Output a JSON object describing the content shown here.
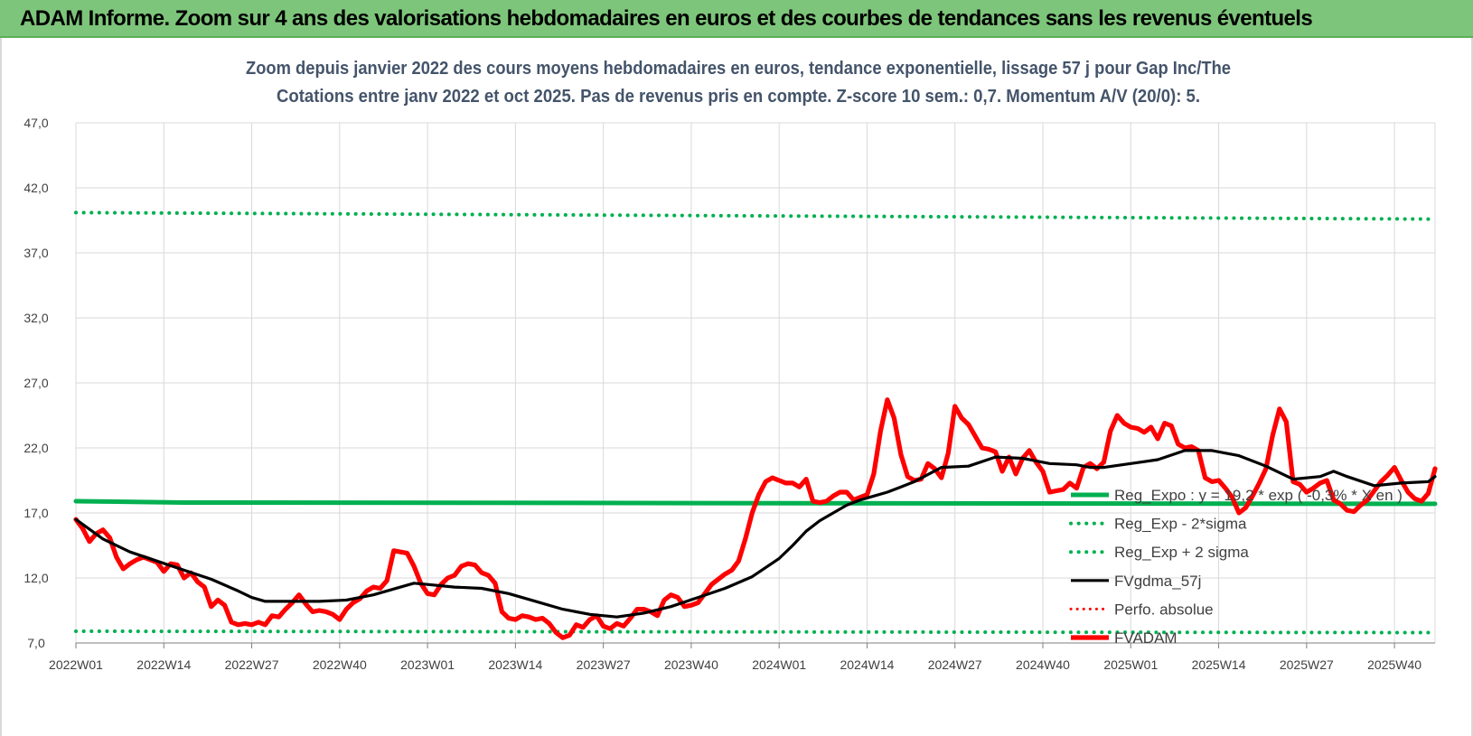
{
  "header": {
    "banner": "ADAM Informe. Zoom sur 4 ans des valorisations hebdomadaires en euros et des courbes de tendances sans les revenus éventuels"
  },
  "colors": {
    "banner_bg": "#7dc57a",
    "reg_expo": "#00b050",
    "sigma": "#00b050",
    "fvgdma": "#000000",
    "perfo": "#ff0000",
    "fvadam": "#ff0000"
  },
  "chart_data": {
    "type": "line",
    "title": "Zoom depuis janvier 2022 des cours moyens hebdomadaires en euros, tendance exponentielle, lissage 57 j pour Gap Inc/The",
    "subtitle": "Cotations entre janv 2022 et oct 2025. Pas de revenus pris en compte. Z-score 10 sem.: 0,7. Momentum A/V (20/0): 5.",
    "xlabel": "",
    "ylabel": "",
    "ylim": [
      7.0,
      47.0
    ],
    "y_ticks": [
      "7,0",
      "12,0",
      "17,0",
      "22,0",
      "27,0",
      "32,0",
      "37,0",
      "42,0",
      "47,0"
    ],
    "x_ticks": [
      "2022W01",
      "2022W14",
      "2022W27",
      "2022W40",
      "2023W01",
      "2023W14",
      "2023W27",
      "2023W40",
      "2024W01",
      "2024W14",
      "2024W27",
      "2024W40",
      "2025W01",
      "2025W14",
      "2025W27",
      "2025W40"
    ],
    "x_range_weeks": [
      0,
      201
    ],
    "legend": [
      "Reg_Expo : y = 19,2 * exp ( -0,3% * X en )",
      "Reg_Exp - 2*sigma",
      "Reg_Exp + 2 sigma",
      "FVgdma_57j",
      "Perfo. absolue",
      "FVADAM"
    ],
    "legend_position": "right",
    "series": [
      {
        "name": "Reg_Expo",
        "style": "solid-thick",
        "x": [
          0,
          16,
          201
        ],
        "values": [
          17.9,
          17.8,
          17.7
        ]
      },
      {
        "name": "Reg_Exp - 2*sigma",
        "style": "dotted",
        "x": [
          0,
          201
        ],
        "values": [
          7.9,
          7.8
        ]
      },
      {
        "name": "Reg_Exp + 2 sigma",
        "style": "dotted",
        "x": [
          0,
          201
        ],
        "values": [
          40.1,
          39.6
        ]
      },
      {
        "name": "FVgdma_57j",
        "style": "solid",
        "x": [
          0,
          4,
          8,
          12,
          16,
          20,
          24,
          26,
          28,
          32,
          36,
          40,
          44,
          48,
          50,
          52,
          56,
          60,
          64,
          68,
          72,
          76,
          80,
          84,
          88,
          92,
          96,
          100,
          104,
          106,
          108,
          110,
          112,
          114,
          116,
          118,
          120,
          122,
          124,
          128,
          132,
          136,
          140,
          144,
          148,
          150,
          152,
          156,
          160,
          164,
          168,
          172,
          176,
          180,
          184,
          186,
          188,
          192,
          196,
          200,
          201
        ],
        "values": [
          16.5,
          15.0,
          14.0,
          13.3,
          12.6,
          11.9,
          11.0,
          10.5,
          10.2,
          10.2,
          10.2,
          10.3,
          10.7,
          11.3,
          11.6,
          11.5,
          11.3,
          11.2,
          10.8,
          10.2,
          9.6,
          9.2,
          9.0,
          9.3,
          9.8,
          10.5,
          11.2,
          12.1,
          13.5,
          14.5,
          15.6,
          16.4,
          17.0,
          17.6,
          18.0,
          18.3,
          18.6,
          19.0,
          19.4,
          20.5,
          20.6,
          21.3,
          21.2,
          20.8,
          20.7,
          20.5,
          20.5,
          20.8,
          21.1,
          21.8,
          21.8,
          21.4,
          20.6,
          19.6,
          19.8,
          20.2,
          19.8,
          19.1,
          19.3,
          19.4,
          19.8
        ]
      },
      {
        "name": "FVADAM",
        "style": "solid-thick",
        "x": [
          0,
          1,
          2,
          3,
          4,
          5,
          6,
          7,
          8,
          9,
          10,
          11,
          12,
          13,
          14,
          15,
          16,
          17,
          18,
          19,
          20,
          21,
          22,
          23,
          24,
          25,
          26,
          27,
          28,
          29,
          30,
          31,
          32,
          33,
          34,
          35,
          36,
          37,
          38,
          39,
          40,
          41,
          42,
          43,
          44,
          45,
          46,
          47,
          48,
          49,
          50,
          51,
          52,
          53,
          54,
          55,
          56,
          57,
          58,
          59,
          60,
          61,
          62,
          63,
          64,
          65,
          66,
          67,
          68,
          69,
          70,
          71,
          72,
          73,
          74,
          75,
          76,
          77,
          78,
          79,
          80,
          81,
          82,
          83,
          84,
          85,
          86,
          87,
          88,
          89,
          90,
          91,
          92,
          93,
          94,
          95,
          96,
          97,
          98,
          99,
          100,
          101,
          102,
          103,
          104,
          105,
          106,
          107,
          108,
          109,
          110,
          111,
          112,
          113,
          114,
          115,
          116,
          117,
          118,
          119,
          120,
          121,
          122,
          123,
          124,
          125,
          126,
          127,
          128,
          129,
          130,
          131,
          132,
          133,
          134,
          135,
          136,
          137,
          138,
          139,
          140,
          141,
          142,
          143,
          144,
          145,
          146,
          147,
          148,
          149,
          150,
          151,
          152,
          153,
          154,
          155,
          156,
          157,
          158,
          159,
          160,
          161,
          162,
          163,
          164,
          165,
          166,
          167,
          168,
          169,
          170,
          171,
          172,
          173,
          174,
          175,
          176,
          177,
          178,
          179,
          180,
          181,
          182,
          183,
          184,
          185,
          186,
          187,
          188,
          189,
          190,
          191,
          192,
          193,
          194,
          195,
          196,
          197,
          198,
          199,
          200,
          201
        ],
        "values": [
          16.5,
          15.8,
          14.8,
          15.4,
          15.7,
          15.1,
          13.6,
          12.7,
          13.1,
          13.4,
          13.6,
          13.4,
          13.2,
          12.5,
          13.1,
          13.0,
          12.0,
          12.4,
          11.7,
          11.3,
          9.8,
          10.3,
          9.9,
          8.6,
          8.4,
          8.5,
          8.4,
          8.6,
          8.4,
          9.1,
          9.0,
          9.6,
          10.1,
          10.7,
          10.0,
          9.4,
          9.5,
          9.4,
          9.2,
          8.8,
          9.6,
          10.1,
          10.4,
          11.0,
          11.3,
          11.2,
          11.8,
          14.1,
          14.0,
          13.9,
          12.9,
          11.6,
          10.8,
          10.7,
          11.5,
          12.0,
          12.2,
          12.9,
          13.1,
          13.0,
          12.4,
          12.2,
          11.6,
          9.4,
          8.9,
          8.8,
          9.1,
          9.0,
          8.8,
          8.9,
          8.5,
          7.8,
          7.4,
          7.6,
          8.4,
          8.2,
          8.8,
          9.1,
          8.3,
          8.1,
          8.5,
          8.3,
          8.9,
          9.6,
          9.6,
          9.4,
          9.1,
          10.3,
          10.7,
          10.5,
          9.8,
          9.9,
          10.1,
          10.8,
          11.5,
          11.9,
          12.3,
          12.6,
          13.3,
          15.0,
          17.0,
          18.4,
          19.4,
          19.7,
          19.5,
          19.3,
          19.3,
          19.0,
          19.6,
          17.9,
          17.8,
          17.9,
          18.3,
          18.6,
          18.6,
          18.0,
          18.2,
          18.4,
          20.0,
          23.3,
          25.7,
          24.3,
          21.5,
          19.8,
          19.5,
          19.6,
          20.8,
          20.4,
          19.7,
          21.6,
          25.2,
          24.3,
          23.8,
          22.9,
          22.0,
          21.9,
          21.7,
          20.2,
          21.3,
          20.0,
          21.2,
          21.8,
          20.9,
          20.2,
          18.6,
          18.7,
          18.8,
          19.3,
          18.9,
          20.5,
          20.8,
          20.4,
          20.9,
          23.3,
          24.5,
          23.9,
          23.6,
          23.5,
          23.2,
          23.6,
          22.7,
          23.9,
          23.7,
          22.3,
          22.0,
          22.1,
          21.8,
          19.7,
          19.4,
          19.5,
          18.9,
          18.2,
          17.0,
          17.4,
          18.3,
          19.3,
          20.4,
          23.0,
          25.0,
          24.0,
          19.4,
          19.2,
          18.6,
          18.9,
          19.3,
          19.5,
          18.0,
          17.7,
          17.2,
          17.1,
          17.6,
          18.0,
          18.7,
          19.4,
          19.9,
          20.5,
          19.5,
          18.6,
          18.1,
          17.9,
          18.5,
          20.4
        ]
      },
      {
        "name": "Perfo. absolue",
        "style": "dotted",
        "x": [],
        "values": []
      }
    ]
  }
}
